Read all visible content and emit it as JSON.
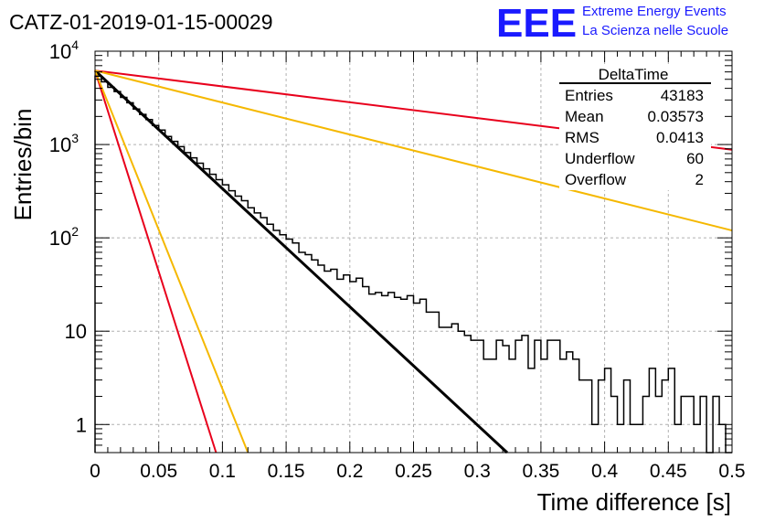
{
  "chart_data": {
    "type": "histogram",
    "title": "CATZ-01-2019-01-15-00029",
    "xlabel": "Time difference [s]",
    "ylabel": "Entries/bin",
    "xlim": [
      0,
      0.5
    ],
    "ylim": [
      0.5,
      10000
    ],
    "yscale": "log",
    "grid": true,
    "x_ticks": [
      0,
      0.05,
      0.1,
      0.15,
      0.2,
      0.25,
      0.3,
      0.35,
      0.4,
      0.45,
      0.5
    ],
    "x_tick_labels": [
      "0",
      "0.05",
      "0.1",
      "0.15",
      "0.2",
      "0.25",
      "0.3",
      "0.35",
      "0.4",
      "0.45",
      "0.5"
    ],
    "y_ticks": [
      1,
      10,
      100,
      1000,
      10000
    ],
    "y_tick_labels": [
      {
        "base": "1",
        "exp": ""
      },
      {
        "base": "10",
        "exp": ""
      },
      {
        "base": "10",
        "exp": "2"
      },
      {
        "base": "10",
        "exp": "3"
      },
      {
        "base": "10",
        "exp": "4"
      }
    ],
    "histogram": {
      "bin_width": 0.005,
      "color": "#000000",
      "counts": [
        5400,
        4700,
        4100,
        3700,
        3200,
        2800,
        2400,
        2100,
        1850,
        1600,
        1430,
        1220,
        1080,
        950,
        820,
        720,
        630,
        550,
        480,
        420,
        370,
        320,
        280,
        250,
        210,
        185,
        165,
        140,
        120,
        108,
        97,
        88,
        70,
        66,
        58,
        51,
        44,
        46,
        36,
        40,
        34,
        37,
        30,
        25,
        26,
        24,
        26,
        23,
        22,
        24,
        20,
        22,
        16,
        16,
        11,
        11,
        12,
        10,
        9,
        8,
        8,
        5,
        5,
        8,
        7,
        5,
        8,
        9,
        4,
        8,
        5,
        8,
        8,
        5,
        6,
        5,
        3,
        3,
        1,
        3,
        4,
        2,
        1,
        3,
        1,
        1,
        2,
        4,
        2,
        3,
        4,
        1,
        2,
        2,
        1,
        2,
        0.2,
        2,
        1,
        0.2
      ]
    },
    "curves": [
      {
        "color": "#000000",
        "y0": 6200,
        "y_end": 0.5,
        "x_end": 0.3235,
        "width": 3
      },
      {
        "color": "#e8001c",
        "y0": 6200,
        "y_end": 0.5,
        "x_end": 0.095,
        "width": 2
      },
      {
        "color": "#f5b800",
        "y0": 6200,
        "y_end": 0.5,
        "x_end": 0.12,
        "width": 2
      },
      {
        "color": "#e8001c",
        "y0": 6200,
        "y_end": 880,
        "x_end": 0.5,
        "width": 2
      },
      {
        "color": "#f5b800",
        "y0": 6200,
        "y_end": 120,
        "x_end": 0.5,
        "width": 2
      }
    ],
    "stats_box": {
      "title": "DeltaTime",
      "rows": [
        {
          "label": "Entries",
          "value": "43183"
        },
        {
          "label": "Mean",
          "value": "0.03573"
        },
        {
          "label": "RMS",
          "value": "0.0413"
        },
        {
          "label": "Underflow",
          "value": "60"
        },
        {
          "label": "Overflow",
          "value": "2"
        }
      ]
    }
  },
  "logo": {
    "text": "EEE",
    "line1": "Extreme Energy Events",
    "line2": "La Scienza nelle Scuole",
    "color": "#1a1aff"
  }
}
